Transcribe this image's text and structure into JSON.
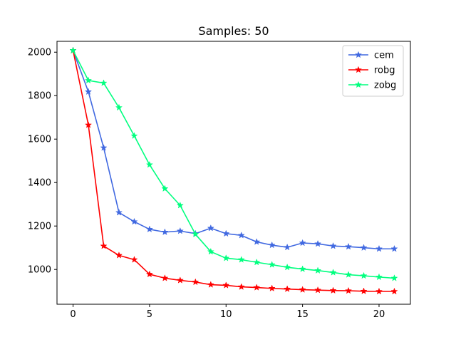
{
  "chart_data": {
    "type": "line",
    "title": "Samples: 50",
    "xlabel": "",
    "ylabel": "",
    "xlim": [
      -1.05,
      22.05
    ],
    "ylim": [
      840,
      2050
    ],
    "x_ticks": [
      0,
      5,
      10,
      15,
      20
    ],
    "y_ticks": [
      1000,
      1200,
      1400,
      1600,
      1800,
      2000
    ],
    "grid": false,
    "legend_position": "top-right",
    "marker": "star",
    "x": [
      0,
      1,
      2,
      3,
      4,
      5,
      6,
      7,
      8,
      9,
      10,
      11,
      12,
      13,
      14,
      15,
      16,
      17,
      18,
      19,
      20,
      21
    ],
    "series": [
      {
        "name": "cem",
        "color": "#4169e1",
        "values": [
          2008,
          1818,
          1560,
          1262,
          1220,
          1185,
          1172,
          1177,
          1165,
          1190,
          1165,
          1157,
          1127,
          1112,
          1102,
          1122,
          1118,
          1108,
          1105,
          1100,
          1095,
          1095
        ]
      },
      {
        "name": "robg",
        "color": "#ff0000",
        "values": [
          2008,
          1665,
          1108,
          1065,
          1045,
          978,
          960,
          950,
          942,
          930,
          927,
          920,
          917,
          913,
          910,
          907,
          905,
          903,
          902,
          900,
          899,
          899
        ]
      },
      {
        "name": "zobg",
        "color": "#00ff7f",
        "values": [
          2008,
          1870,
          1858,
          1745,
          1615,
          1482,
          1372,
          1295,
          1162,
          1082,
          1052,
          1045,
          1033,
          1022,
          1010,
          1002,
          995,
          986,
          976,
          971,
          965,
          960
        ]
      }
    ]
  }
}
